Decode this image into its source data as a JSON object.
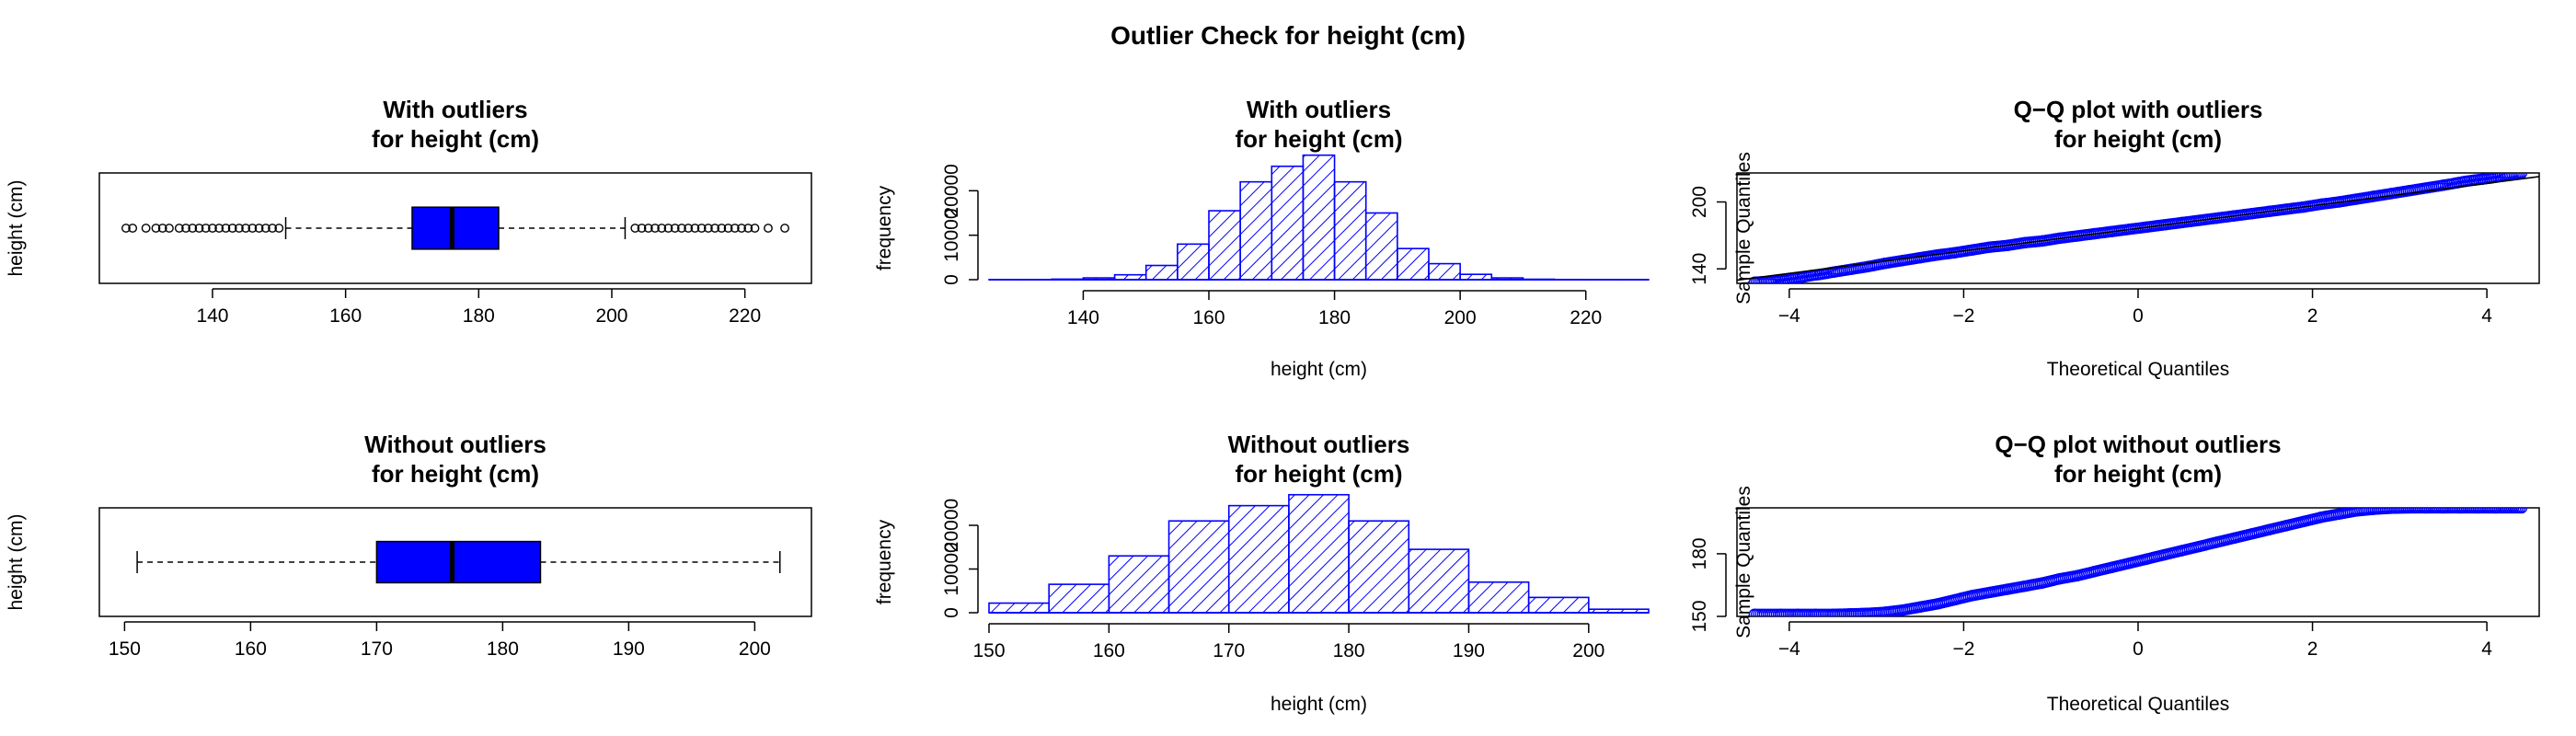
{
  "main_title": "Outlier Check for  height (cm)",
  "colors": {
    "fill": "#0000FF",
    "stroke": "#0000FF",
    "axis": "#000000"
  },
  "chart_data": [
    {
      "id": "box_with",
      "type": "boxplot",
      "title_lines": [
        "With outliers",
        "for height (cm)"
      ],
      "ylabel": "height (cm)",
      "xlabel": "",
      "horizontal": true,
      "xlim": [
        123,
        230
      ],
      "xticks": [
        140,
        160,
        180,
        200,
        220
      ],
      "stats": {
        "whisker_low": 151,
        "q1": 170,
        "median": 176,
        "q3": 183,
        "whisker_high": 202
      },
      "outliers": [
        127,
        128,
        130,
        131.5,
        132.5,
        133.5,
        135,
        136,
        137,
        138,
        139,
        140,
        141,
        142,
        143,
        144,
        145,
        146,
        147,
        148,
        149,
        150,
        203.5,
        204.5,
        205.5,
        206.5,
        207.5,
        208.5,
        209.5,
        210.5,
        211.5,
        212.5,
        213.5,
        214.5,
        215.5,
        216.5,
        217.5,
        218.5,
        219.5,
        220.5,
        221.5,
        223.5,
        226
      ]
    },
    {
      "id": "hist_with",
      "type": "histogram",
      "title_lines": [
        "With outliers",
        "for height (cm)"
      ],
      "xlabel": "height (cm)",
      "ylabel": "frequency",
      "xlim": [
        125,
        230
      ],
      "ylim": [
        0,
        24000
      ],
      "xticks": [
        140,
        160,
        180,
        200,
        220
      ],
      "yticks": [
        0,
        10000,
        20000
      ],
      "bins": [
        {
          "x0": 125,
          "x1": 130,
          "count": 5
        },
        {
          "x0": 130,
          "x1": 135,
          "count": 20
        },
        {
          "x0": 135,
          "x1": 140,
          "count": 120
        },
        {
          "x0": 140,
          "x1": 145,
          "count": 400
        },
        {
          "x0": 145,
          "x1": 150,
          "count": 1100
        },
        {
          "x0": 150,
          "x1": 155,
          "count": 3200
        },
        {
          "x0": 155,
          "x1": 160,
          "count": 8000
        },
        {
          "x0": 160,
          "x1": 165,
          "count": 15500
        },
        {
          "x0": 165,
          "x1": 170,
          "count": 22000
        },
        {
          "x0": 170,
          "x1": 175,
          "count": 25500
        },
        {
          "x0": 175,
          "x1": 180,
          "count": 28000
        },
        {
          "x0": 180,
          "x1": 185,
          "count": 22000
        },
        {
          "x0": 185,
          "x1": 190,
          "count": 15000
        },
        {
          "x0": 190,
          "x1": 195,
          "count": 7000
        },
        {
          "x0": 195,
          "x1": 200,
          "count": 3600
        },
        {
          "x0": 200,
          "x1": 205,
          "count": 1200
        },
        {
          "x0": 205,
          "x1": 210,
          "count": 400
        },
        {
          "x0": 210,
          "x1": 215,
          "count": 100
        },
        {
          "x0": 215,
          "x1": 220,
          "count": 30
        },
        {
          "x0": 220,
          "x1": 225,
          "count": 8
        },
        {
          "x0": 225,
          "x1": 230,
          "count": 2
        }
      ]
    },
    {
      "id": "qq_with",
      "type": "scatter",
      "title_lines": [
        "Q−Q plot with outliers",
        "for height (cm)"
      ],
      "xlabel": "Theoretical Quantiles",
      "ylabel": "Sample Quantiles",
      "xlim": [
        -4.6,
        4.6
      ],
      "ylim": [
        127,
        226
      ],
      "xticks": [
        -4,
        -2,
        0,
        2,
        4
      ],
      "yticks": [
        140,
        200
      ],
      "reference_line": {
        "intercept": 176.3,
        "slope": 10.1
      },
      "points": [
        [
          -4.4,
          128
        ],
        [
          -4.2,
          129
        ],
        [
          -4.05,
          130
        ],
        [
          -3.95,
          131.5
        ],
        [
          -3.85,
          132.5
        ],
        [
          -3.75,
          134
        ],
        [
          -3.65,
          135
        ],
        [
          -3.5,
          137
        ],
        [
          -3.3,
          139.5
        ],
        [
          -3.1,
          142
        ],
        [
          -2.9,
          145
        ],
        [
          -2.7,
          147.5
        ],
        [
          -2.5,
          150
        ],
        [
          -2.3,
          152.5
        ],
        [
          -2.1,
          154.5
        ],
        [
          -1.9,
          157
        ],
        [
          -1.7,
          159.5
        ],
        [
          -1.5,
          161
        ],
        [
          -1.3,
          163.5
        ],
        [
          -1.1,
          165
        ],
        [
          -0.9,
          167.5
        ],
        [
          -0.7,
          169.5
        ],
        [
          -0.5,
          171.5
        ],
        [
          -0.3,
          173.5
        ],
        [
          -0.1,
          175.5
        ],
        [
          0.1,
          177.5
        ],
        [
          0.3,
          179.5
        ],
        [
          0.5,
          181.5
        ],
        [
          0.7,
          183.5
        ],
        [
          0.9,
          185.5
        ],
        [
          1.1,
          187.5
        ],
        [
          1.3,
          189.5
        ],
        [
          1.5,
          191.5
        ],
        [
          1.7,
          193.5
        ],
        [
          1.9,
          195.5
        ],
        [
          2.1,
          198
        ],
        [
          2.3,
          200
        ],
        [
          2.5,
          202.5
        ],
        [
          2.7,
          205
        ],
        [
          2.9,
          207.5
        ],
        [
          3.1,
          210
        ],
        [
          3.3,
          212.5
        ],
        [
          3.5,
          215
        ],
        [
          3.65,
          217
        ],
        [
          3.75,
          218.5
        ],
        [
          3.85,
          219.5
        ],
        [
          3.95,
          220.5
        ],
        [
          4.05,
          221.5
        ],
        [
          4.2,
          223.5
        ],
        [
          4.4,
          226
        ]
      ]
    },
    {
      "id": "box_without",
      "type": "boxplot",
      "title_lines": [
        "Without outliers",
        "for height (cm)"
      ],
      "ylabel": "height (cm)",
      "xlabel": "",
      "horizontal": true,
      "xlim": [
        148,
        204.5
      ],
      "xticks": [
        150,
        160,
        170,
        180,
        190,
        200
      ],
      "stats": {
        "whisker_low": 151,
        "q1": 170,
        "median": 176,
        "q3": 183,
        "whisker_high": 202
      },
      "outliers": []
    },
    {
      "id": "hist_without",
      "type": "histogram",
      "title_lines": [
        "Without outliers",
        "for height (cm)"
      ],
      "xlabel": "height (cm)",
      "ylabel": "frequency",
      "xlim": [
        150,
        205
      ],
      "ylim": [
        0,
        24000
      ],
      "xticks": [
        150,
        160,
        170,
        180,
        190,
        200
      ],
      "yticks": [
        0,
        10000,
        20000
      ],
      "bins": [
        {
          "x0": 150,
          "x1": 155,
          "count": 2200
        },
        {
          "x0": 155,
          "x1": 160,
          "count": 6500
        },
        {
          "x0": 160,
          "x1": 165,
          "count": 13000
        },
        {
          "x0": 165,
          "x1": 170,
          "count": 21000
        },
        {
          "x0": 170,
          "x1": 175,
          "count": 24500
        },
        {
          "x0": 175,
          "x1": 180,
          "count": 27000
        },
        {
          "x0": 180,
          "x1": 185,
          "count": 21000
        },
        {
          "x0": 185,
          "x1": 190,
          "count": 14500
        },
        {
          "x0": 190,
          "x1": 195,
          "count": 7000
        },
        {
          "x0": 195,
          "x1": 200,
          "count": 3500
        },
        {
          "x0": 200,
          "x1": 205,
          "count": 800
        }
      ]
    },
    {
      "id": "qq_without",
      "type": "scatter",
      "title_lines": [
        "Q−Q plot without outliers",
        "for height (cm)"
      ],
      "xlabel": "Theoretical Quantiles",
      "ylabel": "Sample Quantiles",
      "xlim": [
        -4.6,
        4.6
      ],
      "ylim": [
        150,
        202
      ],
      "xticks": [
        -4,
        -2,
        0,
        2,
        4
      ],
      "yticks": [
        150,
        180
      ],
      "points": [
        [
          -4.4,
          151
        ],
        [
          -4.1,
          151
        ],
        [
          -3.9,
          151
        ],
        [
          -3.7,
          151
        ],
        [
          -3.5,
          151
        ],
        [
          -3.3,
          151.2
        ],
        [
          -3.1,
          151.5
        ],
        [
          -2.9,
          152
        ],
        [
          -2.7,
          153
        ],
        [
          -2.5,
          154.5
        ],
        [
          -2.3,
          156
        ],
        [
          -2.1,
          158
        ],
        [
          -1.9,
          160
        ],
        [
          -1.7,
          161.5
        ],
        [
          -1.5,
          163
        ],
        [
          -1.3,
          164.5
        ],
        [
          -1.1,
          166
        ],
        [
          -0.9,
          168
        ],
        [
          -0.7,
          169.5
        ],
        [
          -0.5,
          171.5
        ],
        [
          -0.3,
          173.5
        ],
        [
          -0.1,
          175.5
        ],
        [
          0.1,
          177.5
        ],
        [
          0.3,
          179.5
        ],
        [
          0.5,
          181.5
        ],
        [
          0.7,
          183.5
        ],
        [
          0.9,
          185.5
        ],
        [
          1.1,
          187.5
        ],
        [
          1.3,
          189.5
        ],
        [
          1.5,
          191.5
        ],
        [
          1.7,
          193.5
        ],
        [
          1.9,
          195.5
        ],
        [
          2.1,
          197.5
        ],
        [
          2.3,
          199
        ],
        [
          2.5,
          200.5
        ],
        [
          2.7,
          201.3
        ],
        [
          2.9,
          201.8
        ],
        [
          3.1,
          202
        ],
        [
          3.3,
          202
        ],
        [
          3.5,
          202
        ],
        [
          3.7,
          202
        ],
        [
          3.9,
          202
        ],
        [
          4.1,
          202
        ],
        [
          4.4,
          202
        ]
      ]
    }
  ]
}
